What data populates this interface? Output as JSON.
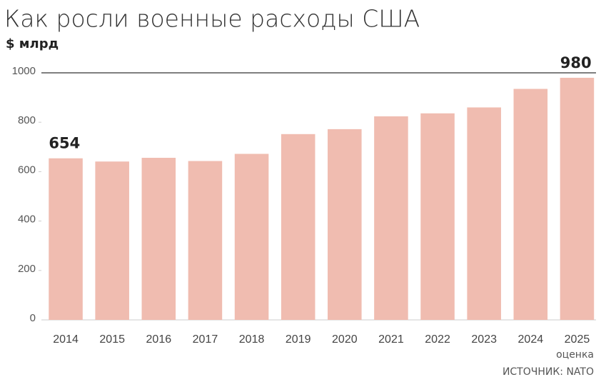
{
  "chart_data": {
    "type": "bar",
    "title": "Как росли военные расходы США",
    "subtitle": "$ млрд",
    "categories": [
      "2014",
      "2015",
      "2016",
      "2017",
      "2018",
      "2019",
      "2020",
      "2021",
      "2022",
      "2023",
      "2024",
      "2025"
    ],
    "values": [
      654,
      641,
      656,
      643,
      672,
      752,
      772,
      824,
      836,
      860,
      935,
      980
    ],
    "value_labels": [
      "654",
      null,
      null,
      null,
      null,
      null,
      null,
      null,
      null,
      null,
      null,
      "980"
    ],
    "color": "#f0bcb0",
    "ylim": [
      0,
      1000
    ],
    "yticks": [
      0,
      200,
      400,
      600,
      800,
      1000
    ],
    "annotation": "оценка",
    "source": "ИСТОЧНИК: NATO"
  }
}
